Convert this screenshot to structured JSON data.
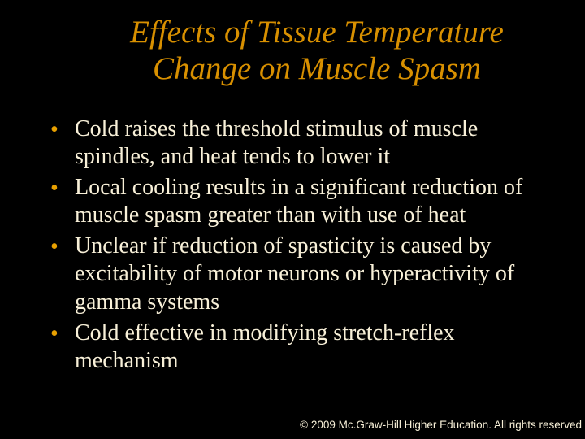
{
  "title_color": "#d89000",
  "body_color": "#f8f0d8",
  "bullet_color": "#e8a000",
  "copyright_color": "#f8f0d8",
  "title": "Effects of Tissue Temperature Change on Muscle Spasm",
  "bullets": [
    "Cold raises the threshold stimulus of muscle spindles, and heat tends to lower it",
    "Local cooling results in a significant reduction of muscle spasm greater than with use of heat",
    "Unclear if reduction of spasticity is caused by excitability of motor neurons or hyperactivity of gamma systems",
    "Cold effective in modifying stretch-reflex mechanism"
  ],
  "copyright": "© 2009 Mc.Graw-Hill Higher Education.  All rights reserved"
}
